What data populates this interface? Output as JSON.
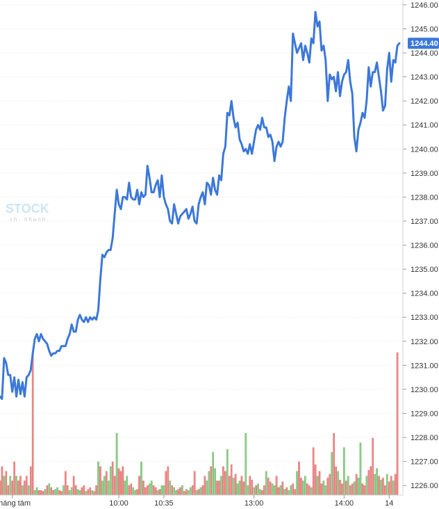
{
  "chart_data": {
    "type": "line",
    "watermark": "STOCK",
    "watermark_sub": "ch. nhanh",
    "last_value_label": "1244.40",
    "colors": {
      "line": "#3c78d8",
      "volume_up": "#8fd18a",
      "volume_down": "#f08a8a",
      "grid": "#e3e3e3",
      "last_label_bg": "#3c78d8"
    },
    "ylim": [
      1225.6,
      1246.2
    ],
    "y_ticks": [
      "1226.00",
      "1227.00",
      "1228.00",
      "1229.00",
      "1230.00",
      "1231.00",
      "1232.00",
      "1233.00",
      "1234.00",
      "1235.00",
      "1236.00",
      "1237.00",
      "1238.00",
      "1239.00",
      "1240.00",
      "1241.00",
      "1242.00",
      "1243.00",
      "1244.00",
      "1245.00",
      "1246.00"
    ],
    "y_tick_values": [
      1226,
      1227,
      1228,
      1229,
      1230,
      1231,
      1232,
      1233,
      1234,
      1235,
      1236,
      1237,
      1238,
      1239,
      1240,
      1241,
      1242,
      1243,
      1244,
      1245,
      1246
    ],
    "x_tick_labels": [
      "Tháng tám",
      "10:00",
      "10:35",
      "13:00",
      "14:00",
      "14"
    ],
    "x_tick_index": [
      6,
      58,
      80,
      124,
      168,
      190
    ],
    "index_series": [
      1229.7,
      1229.6,
      1231.3,
      1231.1,
      1230.6,
      1230.6,
      1229.9,
      1230.5,
      1229.7,
      1230.4,
      1229.8,
      1230.3,
      1229.7,
      1230.5,
      1230.6,
      1230.8,
      1231.5,
      1232.1,
      1232.3,
      1232.0,
      1232.3,
      1232.1,
      1232.0,
      1231.9,
      1231.6,
      1231.4,
      1231.5,
      1231.5,
      1231.6,
      1231.6,
      1231.8,
      1231.8,
      1231.8,
      1232.1,
      1232.3,
      1232.7,
      1232.4,
      1232.4,
      1232.9,
      1233.1,
      1232.9,
      1232.8,
      1233.0,
      1232.8,
      1233.0,
      1232.9,
      1233.0,
      1232.9,
      1233.3,
      1234.6,
      1235.6,
      1235.5,
      1235.7,
      1235.8,
      1235.8,
      1236.3,
      1237.3,
      1238.3,
      1237.7,
      1237.5,
      1238.0,
      1238.0,
      1237.9,
      1238.6,
      1238.0,
      1237.9,
      1237.9,
      1238.3,
      1237.7,
      1238.2,
      1238.0,
      1238.1,
      1239.3,
      1238.8,
      1238.2,
      1238.2,
      1238.5,
      1238.7,
      1238.0,
      1238.9,
      1238.0,
      1237.7,
      1237.5,
      1237.0,
      1236.9,
      1237.7,
      1237.3,
      1236.9,
      1237.2,
      1237.3,
      1237.4,
      1237.5,
      1237.1,
      1237.3,
      1237.6,
      1237.0,
      1236.9,
      1237.7,
      1238.0,
      1238.2,
      1237.7,
      1238.6,
      1238.5,
      1238.1,
      1238.8,
      1238.3,
      1238.1,
      1238.9,
      1238.7,
      1239.8,
      1240.1,
      1241.5,
      1241.4,
      1242.0,
      1241.3,
      1240.9,
      1241.1,
      1240.4,
      1240.2,
      1239.9,
      1240.0,
      1239.8,
      1240.2,
      1239.8,
      1240.3,
      1240.8,
      1241.0,
      1240.8,
      1241.3,
      1240.9,
      1240.9,
      1240.5,
      1240.6,
      1240.3,
      1239.5,
      1240.1,
      1240.3,
      1240.1,
      1240.3,
      1241.3,
      1242.0,
      1242.6,
      1242.0,
      1244.8,
      1244.4,
      1244.0,
      1244.2,
      1244.4,
      1243.7,
      1244.3,
      1244.0,
      1243.6,
      1244.6,
      1244.4,
      1245.7,
      1245.1,
      1245.3,
      1244.1,
      1244.3,
      1243.7,
      1242.0,
      1243.1,
      1242.9,
      1243.0,
      1242.4,
      1243.2,
      1242.2,
      1242.8,
      1243.1,
      1243.2,
      1243.7,
      1242.8,
      1242.3,
      1240.5,
      1239.9,
      1240.8,
      1241.1,
      1241.5,
      1241.3,
      1242.0,
      1243.4,
      1242.6,
      1243.2,
      1243.2,
      1243.6,
      1243.0,
      1242.4,
      1241.6,
      1241.8,
      1243.3,
      1244.0,
      1242.8,
      1243.7,
      1243.6,
      1244.3,
      1244.4
    ],
    "volume_ratio": [
      0.15,
      0.3,
      0.2,
      0.25,
      0.1,
      0.2,
      0.15,
      0.35,
      0.2,
      0.15,
      0.2,
      0.1,
      0.15,
      0.2,
      0.1,
      0.3,
      1.5,
      0.05,
      0.08,
      0.05,
      0.05,
      0.04,
      0.06,
      0.1,
      0.12,
      0.08,
      0.05,
      0.06,
      0.08,
      0.05,
      0.04,
      0.1,
      0.25,
      0.1,
      0.05,
      0.08,
      0.2,
      0.1,
      0.06,
      0.05,
      0.08,
      0.1,
      0.04,
      0.06,
      0.08,
      0.05,
      0.04,
      0.1,
      0.35,
      0.3,
      0.15,
      0.2,
      0.25,
      0.15,
      0.3,
      0.35,
      0.2,
      0.65,
      0.28,
      0.25,
      0.3,
      0.15,
      0.2,
      0.1,
      0.12,
      0.08,
      0.05,
      0.06,
      0.2,
      0.35,
      0.15,
      0.08,
      0.1,
      0.12,
      0.15,
      0.1,
      0.08,
      0.05,
      0.06,
      0.1,
      0.1,
      0.25,
      0.3,
      0.15,
      0.1,
      0.08,
      0.05,
      0.06,
      0.08,
      0.1,
      0.04,
      0.06,
      0.05,
      0.08,
      0.1,
      0.25,
      0.05,
      0.06,
      0.08,
      0.1,
      0.2,
      0.15,
      0.25,
      0.3,
      0.45,
      0.28,
      0.15,
      0.15,
      0.2,
      0.3,
      0.25,
      0.48,
      0.2,
      0.32,
      0.18,
      0.22,
      0.12,
      0.15,
      0.2,
      0.14,
      0.65,
      0.1,
      0.2,
      0.16,
      0.08,
      0.1,
      0.12,
      0.06,
      0.05,
      0.1,
      0.25,
      0.18,
      0.14,
      0.12,
      0.1,
      0.2,
      0.08,
      0.1,
      0.14,
      0.06,
      0.08,
      0.05,
      0.1,
      0.12,
      0.06,
      0.25,
      0.35,
      0.18,
      0.15,
      0.2,
      0.12,
      0.1,
      0.08,
      0.5,
      0.32,
      0.2,
      0.25,
      0.12,
      0.15,
      0.1,
      0.18,
      0.22,
      0.45,
      0.65,
      0.3,
      0.25,
      0.16,
      0.12,
      0.5,
      0.15,
      0.2,
      0.1,
      0.12,
      0.14,
      0.22,
      0.18,
      0.55,
      0.12,
      0.1,
      0.2,
      0.26,
      0.3,
      0.6,
      0.22,
      0.28,
      0.2,
      0.16,
      0.18,
      0.1,
      0.22,
      0.14,
      0.2,
      0.15,
      0.22,
      1.5
    ],
    "volume_dir": "ddudduddudduddudduudddududduuddudduudduudduddudduduuduudduddduudduudduddduudduduudduduuddudduuddududduuduudduddudduduudduudduduuddudduuddududuuddudduudduddudduuddudduddududduduudduddduudu"
  }
}
